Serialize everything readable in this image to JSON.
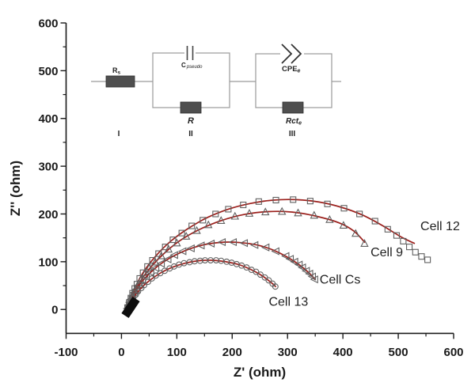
{
  "chart_data": {
    "type": "scatter",
    "title": "",
    "xlabel": "Z' (ohm)",
    "ylabel": "Z'' (ohm)",
    "xlim": [
      -100,
      600
    ],
    "ylim": [
      -50,
      600
    ],
    "x_ticks": [
      -100,
      0,
      100,
      200,
      300,
      400,
      500,
      600
    ],
    "x_minor_ticks": [
      -50,
      50,
      150,
      250,
      350,
      450,
      550
    ],
    "y_ticks": [
      0,
      100,
      200,
      300,
      400,
      500,
      600
    ],
    "y_minor_ticks": [
      50,
      150,
      250,
      350,
      450,
      550
    ],
    "grid": false,
    "legend_position": "inline-labels",
    "marker_color": "#606060",
    "fit_line_color": "#9b201c",
    "origin_cluster": {
      "x_range": [
        2,
        26
      ],
      "y_range": [
        -12,
        20
      ],
      "color": "#0d0d0d"
    },
    "series": [
      {
        "name": "Cell 12",
        "marker": "square",
        "label_pos": [
          540,
          166
        ],
        "points": [
          [
            11,
            4
          ],
          [
            14,
            14
          ],
          [
            17,
            24
          ],
          [
            20,
            34
          ],
          [
            24,
            44
          ],
          [
            28,
            53
          ],
          [
            33,
            65
          ],
          [
            39,
            77
          ],
          [
            47,
            90
          ],
          [
            56,
            103
          ],
          [
            67,
            117
          ],
          [
            79,
            131
          ],
          [
            93,
            146
          ],
          [
            109,
            160
          ],
          [
            127,
            175
          ],
          [
            147,
            187
          ],
          [
            170,
            200
          ],
          [
            193,
            210
          ],
          [
            220,
            219
          ],
          [
            248,
            226
          ],
          [
            279,
            229
          ],
          [
            310,
            230
          ],
          [
            341,
            227
          ],
          [
            372,
            221
          ],
          [
            402,
            212
          ],
          [
            430,
            200
          ],
          [
            458,
            185
          ],
          [
            481,
            168
          ],
          [
            497,
            155
          ],
          [
            509,
            143
          ],
          [
            520,
            131
          ],
          [
            531,
            120
          ],
          [
            542,
            111
          ],
          [
            553,
            104
          ]
        ],
        "fit": [
          [
            10,
            -1
          ],
          [
            22,
            39
          ],
          [
            39,
            77
          ],
          [
            62,
            112
          ],
          [
            89,
            143
          ],
          [
            121,
            170
          ],
          [
            156,
            193
          ],
          [
            193,
            210
          ],
          [
            233,
            222
          ],
          [
            274,
            229
          ],
          [
            316,
            230
          ],
          [
            357,
            225
          ],
          [
            397,
            214
          ],
          [
            435,
            198
          ],
          [
            471,
            176
          ],
          [
            505,
            152
          ],
          [
            530,
            138
          ]
        ]
      },
      {
        "name": "Cell 9",
        "marker": "triangle-up",
        "label_pos": [
          450,
          111
        ],
        "points": [
          [
            11,
            2
          ],
          [
            13,
            11
          ],
          [
            17,
            21
          ],
          [
            20,
            30
          ],
          [
            24,
            39
          ],
          [
            29,
            50
          ],
          [
            35,
            61
          ],
          [
            42,
            73
          ],
          [
            50,
            86
          ],
          [
            61,
            99
          ],
          [
            72,
            112
          ],
          [
            85,
            126
          ],
          [
            100,
            139
          ],
          [
            117,
            153
          ],
          [
            136,
            165
          ],
          [
            157,
            177
          ],
          [
            180,
            186
          ],
          [
            205,
            195
          ],
          [
            231,
            201
          ],
          [
            260,
            204
          ],
          [
            290,
            205
          ],
          [
            319,
            202
          ],
          [
            348,
            197
          ],
          [
            376,
            188
          ],
          [
            401,
            176
          ],
          [
            423,
            159
          ],
          [
            439,
            138
          ]
        ],
        "fit": [
          [
            9,
            -3
          ],
          [
            24,
            39
          ],
          [
            45,
            77
          ],
          [
            72,
            112
          ],
          [
            104,
            143
          ],
          [
            140,
            167
          ],
          [
            180,
            186
          ],
          [
            222,
            199
          ],
          [
            265,
            205
          ],
          [
            309,
            204
          ],
          [
            353,
            195
          ],
          [
            394,
            181
          ],
          [
            420,
            164
          ],
          [
            440,
            140
          ]
        ]
      },
      {
        "name": "Cell Cs",
        "marker": "triangle-left",
        "label_pos": [
          358,
          54
        ],
        "points": [
          [
            11,
            2
          ],
          [
            13,
            9
          ],
          [
            15,
            15
          ],
          [
            17,
            21
          ],
          [
            20,
            27
          ],
          [
            23,
            35
          ],
          [
            27,
            42
          ],
          [
            32,
            51
          ],
          [
            38,
            59
          ],
          [
            45,
            69
          ],
          [
            53,
            78
          ],
          [
            62,
            87
          ],
          [
            72,
            96
          ],
          [
            84,
            105
          ],
          [
            96,
            114
          ],
          [
            111,
            122
          ],
          [
            126,
            128
          ],
          [
            144,
            134
          ],
          [
            162,
            138
          ],
          [
            182,
            141
          ],
          [
            202,
            141
          ],
          [
            222,
            139
          ],
          [
            241,
            135
          ],
          [
            261,
            130
          ],
          [
            279,
            122
          ],
          [
            297,
            112
          ],
          [
            305,
            106
          ],
          [
            313,
            100
          ],
          [
            321,
            94
          ],
          [
            327,
            88
          ],
          [
            334,
            81
          ],
          [
            340,
            75
          ],
          [
            345,
            69
          ],
          [
            349,
            63
          ]
        ],
        "fit": [
          [
            10,
            0
          ],
          [
            20,
            27
          ],
          [
            34,
            54
          ],
          [
            53,
            78
          ],
          [
            74,
            98
          ],
          [
            99,
            115
          ],
          [
            126,
            128
          ],
          [
            155,
            137
          ],
          [
            185,
            141
          ],
          [
            215,
            140
          ],
          [
            245,
            135
          ],
          [
            273,
            125
          ],
          [
            299,
            110
          ],
          [
            323,
            92
          ],
          [
            342,
            73
          ],
          [
            350,
            62
          ]
        ]
      },
      {
        "name": "Cell 13",
        "marker": "circle",
        "label_pos": [
          266,
          8
        ],
        "points": [
          [
            11,
            2
          ],
          [
            14,
            10
          ],
          [
            18,
            17
          ],
          [
            21,
            24
          ],
          [
            26,
            31
          ],
          [
            30,
            38
          ],
          [
            36,
            45
          ],
          [
            41,
            51
          ],
          [
            48,
            58
          ],
          [
            55,
            65
          ],
          [
            62,
            71
          ],
          [
            70,
            76
          ],
          [
            78,
            81
          ],
          [
            87,
            86
          ],
          [
            95,
            90
          ],
          [
            104,
            94
          ],
          [
            113,
            97
          ],
          [
            123,
            99
          ],
          [
            132,
            101
          ],
          [
            142,
            102
          ],
          [
            151,
            103
          ],
          [
            161,
            103
          ],
          [
            171,
            103
          ],
          [
            180,
            102
          ],
          [
            190,
            100
          ],
          [
            199,
            98
          ],
          [
            208,
            95
          ],
          [
            217,
            92
          ],
          [
            226,
            88
          ],
          [
            235,
            83
          ],
          [
            243,
            79
          ],
          [
            251,
            73
          ],
          [
            259,
            67
          ],
          [
            266,
            61
          ],
          [
            273,
            54
          ],
          [
            278,
            48
          ]
        ],
        "fit": [
          [
            10,
            -1
          ],
          [
            20,
            22
          ],
          [
            34,
            43
          ],
          [
            51,
            61
          ],
          [
            70,
            76
          ],
          [
            91,
            88
          ],
          [
            115,
            97
          ],
          [
            139,
            102
          ],
          [
            164,
            103
          ],
          [
            188,
            100
          ],
          [
            212,
            94
          ],
          [
            235,
            83
          ],
          [
            255,
            70
          ],
          [
            274,
            53
          ],
          [
            279,
            47
          ]
        ]
      }
    ]
  },
  "circuit": {
    "rs_main": "R",
    "rs_sub": "s",
    "cap_main": "C",
    "cap_sub": "pseudo",
    "r_label": "R",
    "cpe_main": "CPE",
    "cpe_sub": "e",
    "rct_main": "Rct",
    "rct_sub": "e",
    "section_one": "I",
    "section_two": "II",
    "section_three": "III"
  }
}
